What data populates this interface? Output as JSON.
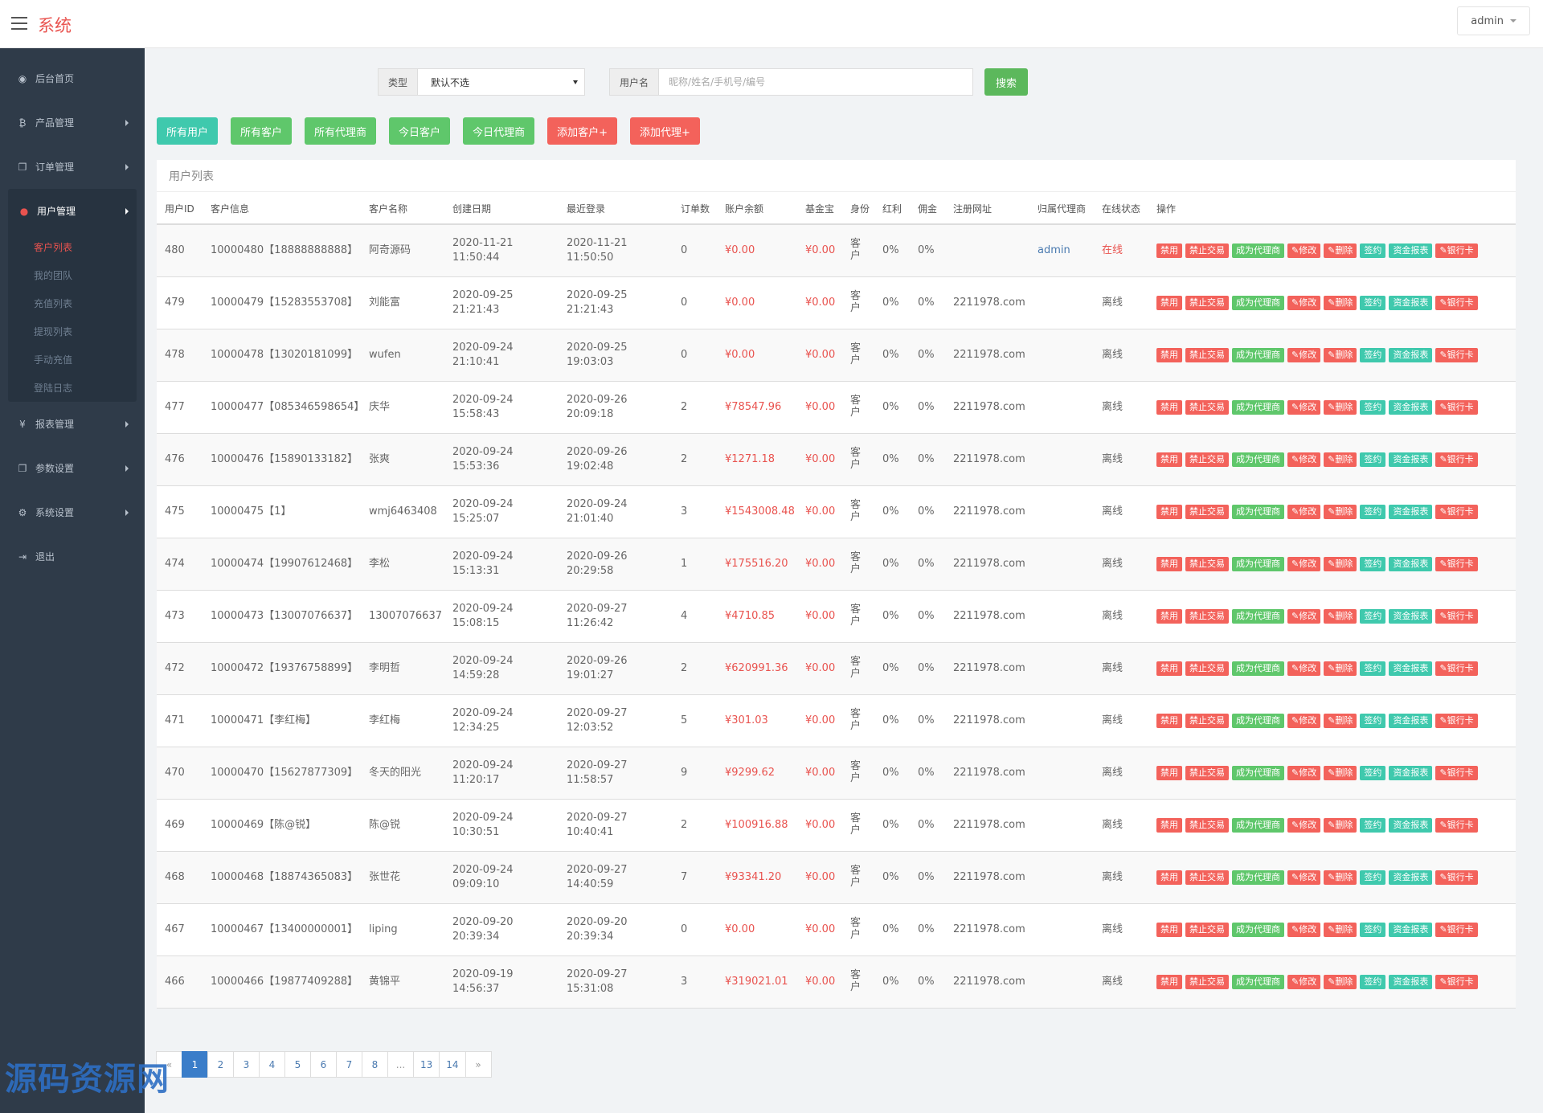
{
  "header": {
    "brand": "系统",
    "user": "admin"
  },
  "sidebar": {
    "items": [
      {
        "icon": "dashboard-icon",
        "glyph": "◉",
        "label": "后台首页"
      },
      {
        "icon": "bitcoin-icon",
        "glyph": "₿",
        "label": "产品管理"
      },
      {
        "icon": "copy-icon",
        "glyph": "❐",
        "label": "订单管理"
      },
      {
        "icon": "user-icon",
        "glyph": "●",
        "label": "用户管理"
      },
      {
        "icon": "yen-icon",
        "glyph": "¥",
        "label": "报表管理"
      },
      {
        "icon": "copy-icon",
        "glyph": "❐",
        "label": "参数设置"
      },
      {
        "icon": "gears-icon",
        "glyph": "⚙",
        "label": "系统设置"
      },
      {
        "icon": "sign-out-icon",
        "glyph": "⇥",
        "label": "退出"
      }
    ],
    "sub_items": [
      "客户列表",
      "我的团队",
      "充值列表",
      "提现列表",
      "手动充值",
      "登陆日志"
    ]
  },
  "search": {
    "type_label": "类型",
    "type_value": "默认不选",
    "name_label": "用户名",
    "placeholder": "昵称/姓名/手机号/编号",
    "button": "搜索"
  },
  "filters": [
    "所有用户",
    "所有客户",
    "所有代理商",
    "今日客户",
    "今日代理商",
    "添加客户+",
    "添加代理+"
  ],
  "panel": {
    "title": "用户列表"
  },
  "columns": [
    "用户ID",
    "客户信息",
    "客户名称",
    "创建日期",
    "最近登录",
    "订单数",
    "账户余额",
    "基金宝",
    "身份",
    "红利",
    "佣金",
    "注册网址",
    "归属代理商",
    "在线状态",
    "操作"
  ],
  "actions": [
    "禁用",
    "禁止交易",
    "成为代理商",
    "✎修改",
    "✎删除",
    "签约",
    "资金报表",
    "✎银行卡"
  ],
  "rows": [
    {
      "id": "480",
      "info": "10000480【18888888888】",
      "name": "阿奇源码",
      "created_date": "2020-11-21",
      "created_time": "11:50:44",
      "login_date": "2020-11-21",
      "login_time": "11:50:50",
      "orders": "0",
      "balance": "¥0.00",
      "fund": "¥0.00",
      "role": "客户",
      "bonus": "0%",
      "commission": "0%",
      "site": "",
      "agent": "admin",
      "status": "在线"
    },
    {
      "id": "479",
      "info": "10000479【15283553708】",
      "name": "刘能富",
      "created_date": "2020-09-25",
      "created_time": "21:21:43",
      "login_date": "2020-09-25",
      "login_time": "21:21:43",
      "orders": "0",
      "balance": "¥0.00",
      "fund": "¥0.00",
      "role": "客户",
      "bonus": "0%",
      "commission": "0%",
      "site": "2211978.com",
      "agent": "",
      "status": "离线"
    },
    {
      "id": "478",
      "info": "10000478【13020181099】",
      "name": "wufen",
      "created_date": "2020-09-24",
      "created_time": "21:10:41",
      "login_date": "2020-09-25",
      "login_time": "19:03:03",
      "orders": "0",
      "balance": "¥0.00",
      "fund": "¥0.00",
      "role": "客户",
      "bonus": "0%",
      "commission": "0%",
      "site": "2211978.com",
      "agent": "",
      "status": "离线"
    },
    {
      "id": "477",
      "info": "10000477【085346598654】",
      "name": "庆华",
      "created_date": "2020-09-24",
      "created_time": "15:58:43",
      "login_date": "2020-09-26",
      "login_time": "20:09:18",
      "orders": "2",
      "balance": "¥78547.96",
      "fund": "¥0.00",
      "role": "客户",
      "bonus": "0%",
      "commission": "0%",
      "site": "2211978.com",
      "agent": "",
      "status": "离线"
    },
    {
      "id": "476",
      "info": "10000476【15890133182】",
      "name": "张爽",
      "created_date": "2020-09-24",
      "created_time": "15:53:36",
      "login_date": "2020-09-26",
      "login_time": "19:02:48",
      "orders": "2",
      "balance": "¥1271.18",
      "fund": "¥0.00",
      "role": "客户",
      "bonus": "0%",
      "commission": "0%",
      "site": "2211978.com",
      "agent": "",
      "status": "离线"
    },
    {
      "id": "475",
      "info": "10000475【1】",
      "name": "wmj6463408",
      "created_date": "2020-09-24",
      "created_time": "15:25:07",
      "login_date": "2020-09-24",
      "login_time": "21:01:40",
      "orders": "3",
      "balance": "¥1543008.48",
      "fund": "¥0.00",
      "role": "客户",
      "bonus": "0%",
      "commission": "0%",
      "site": "2211978.com",
      "agent": "",
      "status": "离线"
    },
    {
      "id": "474",
      "info": "10000474【19907612468】",
      "name": "李松",
      "created_date": "2020-09-24",
      "created_time": "15:13:31",
      "login_date": "2020-09-26",
      "login_time": "20:29:58",
      "orders": "1",
      "balance": "¥175516.20",
      "fund": "¥0.00",
      "role": "客户",
      "bonus": "0%",
      "commission": "0%",
      "site": "2211978.com",
      "agent": "",
      "status": "离线"
    },
    {
      "id": "473",
      "info": "10000473【13007076637】",
      "name": "13007076637",
      "created_date": "2020-09-24",
      "created_time": "15:08:15",
      "login_date": "2020-09-27",
      "login_time": "11:26:42",
      "orders": "4",
      "balance": "¥4710.85",
      "fund": "¥0.00",
      "role": "客户",
      "bonus": "0%",
      "commission": "0%",
      "site": "2211978.com",
      "agent": "",
      "status": "离线"
    },
    {
      "id": "472",
      "info": "10000472【19376758899】",
      "name": "李明哲",
      "created_date": "2020-09-24",
      "created_time": "14:59:28",
      "login_date": "2020-09-26",
      "login_time": "19:01:27",
      "orders": "2",
      "balance": "¥620991.36",
      "fund": "¥0.00",
      "role": "客户",
      "bonus": "0%",
      "commission": "0%",
      "site": "2211978.com",
      "agent": "",
      "status": "离线"
    },
    {
      "id": "471",
      "info": "10000471【李红梅】",
      "name": "李红梅",
      "created_date": "2020-09-24",
      "created_time": "12:34:25",
      "login_date": "2020-09-27",
      "login_time": "12:03:52",
      "orders": "5",
      "balance": "¥301.03",
      "fund": "¥0.00",
      "role": "客户",
      "bonus": "0%",
      "commission": "0%",
      "site": "2211978.com",
      "agent": "",
      "status": "离线"
    },
    {
      "id": "470",
      "info": "10000470【15627877309】",
      "name": "冬天的阳光",
      "created_date": "2020-09-24",
      "created_time": "11:20:17",
      "login_date": "2020-09-27",
      "login_time": "11:58:57",
      "orders": "9",
      "balance": "¥9299.62",
      "fund": "¥0.00",
      "role": "客户",
      "bonus": "0%",
      "commission": "0%",
      "site": "2211978.com",
      "agent": "",
      "status": "离线"
    },
    {
      "id": "469",
      "info": "10000469【陈@锐】",
      "name": "陈@锐",
      "created_date": "2020-09-24",
      "created_time": "10:30:51",
      "login_date": "2020-09-27",
      "login_time": "10:40:41",
      "orders": "2",
      "balance": "¥100916.88",
      "fund": "¥0.00",
      "role": "客户",
      "bonus": "0%",
      "commission": "0%",
      "site": "2211978.com",
      "agent": "",
      "status": "离线"
    },
    {
      "id": "468",
      "info": "10000468【18874365083】",
      "name": "张世花",
      "created_date": "2020-09-24",
      "created_time": "09:09:10",
      "login_date": "2020-09-27",
      "login_time": "14:40:59",
      "orders": "7",
      "balance": "¥93341.20",
      "fund": "¥0.00",
      "role": "客户",
      "bonus": "0%",
      "commission": "0%",
      "site": "2211978.com",
      "agent": "",
      "status": "离线"
    },
    {
      "id": "467",
      "info": "10000467【13400000001】",
      "name": "liping",
      "created_date": "2020-09-20",
      "created_time": "20:39:34",
      "login_date": "2020-09-20",
      "login_time": "20:39:34",
      "orders": "0",
      "balance": "¥0.00",
      "fund": "¥0.00",
      "role": "客户",
      "bonus": "0%",
      "commission": "0%",
      "site": "2211978.com",
      "agent": "",
      "status": "离线"
    },
    {
      "id": "466",
      "info": "10000466【19877409288】",
      "name": "黄锦平",
      "created_date": "2020-09-19",
      "created_time": "14:56:37",
      "login_date": "2020-09-27",
      "login_time": "15:31:08",
      "orders": "3",
      "balance": "¥319021.01",
      "fund": "¥0.00",
      "role": "客户",
      "bonus": "0%",
      "commission": "0%",
      "site": "2211978.com",
      "agent": "",
      "status": "离线"
    }
  ],
  "pagination": [
    "«",
    "1",
    "2",
    "3",
    "4",
    "5",
    "6",
    "7",
    "8",
    "...",
    "13",
    "14",
    "»"
  ],
  "watermark": "源码资源网",
  "colors": {
    "accent_red": "#e9534f",
    "teal": "#3fc9ad",
    "green": "#5fc76b",
    "sidebar": "#2f3b49"
  }
}
